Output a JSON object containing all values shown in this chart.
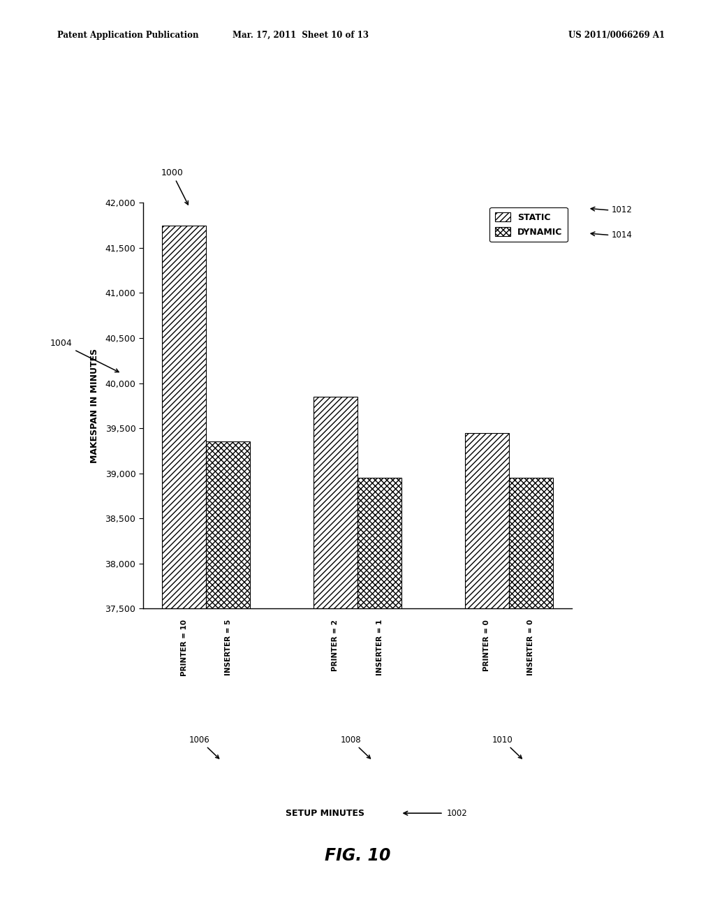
{
  "title_header_left": "Patent Application Publication",
  "title_header_mid": "Mar. 17, 2011  Sheet 10 of 13",
  "title_header_right": "US 2011/0066269 A1",
  "fig_label": "FIG. 10",
  "ylabel": "MAKESPAN IN MINUTES",
  "xlabel": "SETUP MINUTES",
  "ylim": [
    37500,
    42000
  ],
  "yticks": [
    37500,
    38000,
    38500,
    39000,
    39500,
    40000,
    40500,
    41000,
    41500,
    42000
  ],
  "groups": [
    {
      "label_static": "PRINTER = 10",
      "label_dynamic": "INSERTER = 5",
      "static_val": 41750,
      "dynamic_val": 39350,
      "ref_label": "1006"
    },
    {
      "label_static": "PRINTER = 2",
      "label_dynamic": "INSERTER = 1",
      "static_val": 39850,
      "dynamic_val": 38950,
      "ref_label": "1008"
    },
    {
      "label_static": "PRINTER = 0",
      "label_dynamic": "INSERTER = 0",
      "static_val": 39450,
      "dynamic_val": 38950,
      "ref_label": "1010"
    }
  ],
  "legend_labels": [
    "STATIC",
    "DYNAMIC"
  ],
  "legend_refs": [
    "1012",
    "1014"
  ],
  "bar_width": 0.35,
  "xlim": [
    -0.5,
    2.9
  ],
  "group_positions": [
    0,
    1.2,
    2.4
  ],
  "bg_color": "#ffffff",
  "bar_edge_color": "#000000",
  "axis_color": "#000000",
  "font_color": "#000000",
  "hatch_static": "////",
  "hatch_dynamic": "xxxx"
}
